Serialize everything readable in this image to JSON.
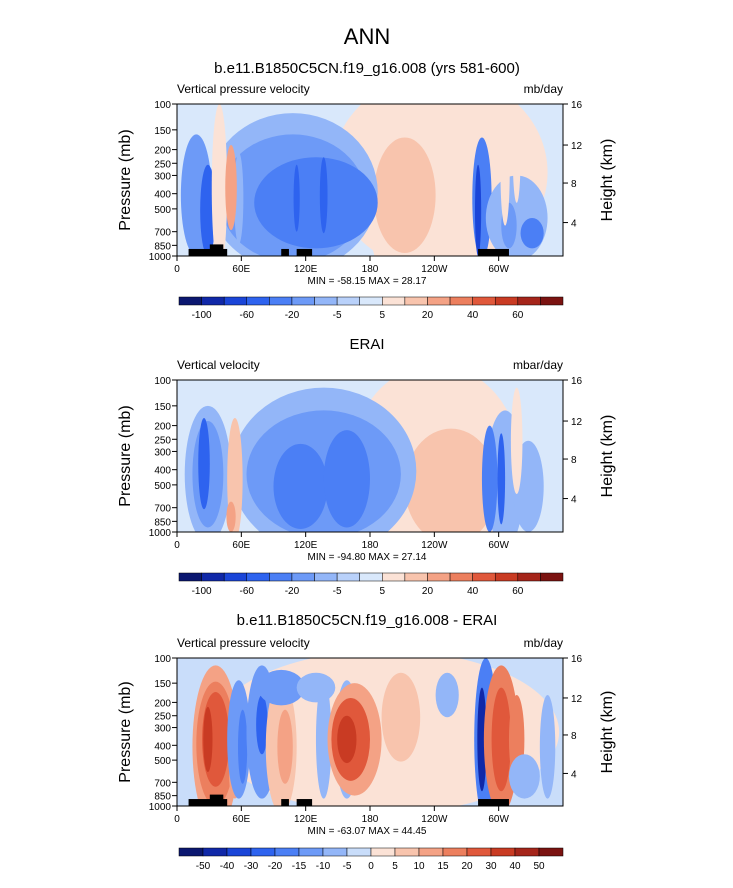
{
  "figure": {
    "title": "ANN"
  },
  "chart_data": [
    {
      "type": "heatmap",
      "title": "b.e11.B1850C5CN.f19_g16.008 (yrs 581-600)",
      "left_label": "Vertical pressure velocity",
      "right_label": "mb/day",
      "xlabel": "",
      "ylabel": "Pressure (mb)",
      "y2label": "Height (km)",
      "x_ticks": [
        "0",
        "60E",
        "120E",
        "180",
        "120W",
        "60W"
      ],
      "y_ticks": [
        "100",
        "150",
        "200",
        "250",
        "300",
        "400",
        "500",
        "700",
        "850",
        "1000"
      ],
      "y2_ticks": [
        "4",
        "8",
        "12",
        "16"
      ],
      "minmax": "MIN = -58.15  MAX = 28.17",
      "colorbar_labels": [
        "-100",
        "-60",
        "-20",
        "-5",
        "5",
        "20",
        "40",
        "60"
      ]
    },
    {
      "type": "heatmap",
      "title": "ERAI",
      "left_label": "Vertical velocity",
      "right_label": "mbar/day",
      "xlabel": "",
      "ylabel": "Pressure (mb)",
      "y2label": "Height (km)",
      "x_ticks": [
        "0",
        "60E",
        "120E",
        "180",
        "120W",
        "60W"
      ],
      "y_ticks": [
        "100",
        "150",
        "200",
        "250",
        "300",
        "400",
        "500",
        "700",
        "850",
        "1000"
      ],
      "y2_ticks": [
        "4",
        "8",
        "12",
        "16"
      ],
      "minmax": "MIN = -94.80  MAX = 27.14",
      "colorbar_labels": [
        "-100",
        "-60",
        "-20",
        "-5",
        "5",
        "20",
        "40",
        "60"
      ]
    },
    {
      "type": "heatmap",
      "title": "b.e11.B1850C5CN.f19_g16.008 - ERAI",
      "left_label": "Vertical pressure velocity",
      "right_label": "mb/day",
      "xlabel": "",
      "ylabel": "Pressure (mb)",
      "y2label": "Height (km)",
      "x_ticks": [
        "0",
        "60E",
        "120E",
        "180",
        "120W",
        "60W"
      ],
      "y_ticks": [
        "100",
        "150",
        "200",
        "250",
        "300",
        "400",
        "500",
        "700",
        "850",
        "1000"
      ],
      "y2_ticks": [
        "4",
        "8",
        "12",
        "16"
      ],
      "minmax": "MIN = -63.07  MAX = 44.45",
      "colorbar_labels": [
        "-50",
        "-40",
        "-30",
        "-20",
        "-15",
        "-10",
        "-5",
        "0",
        "5",
        "10",
        "15",
        "20",
        "30",
        "40",
        "50"
      ]
    }
  ]
}
